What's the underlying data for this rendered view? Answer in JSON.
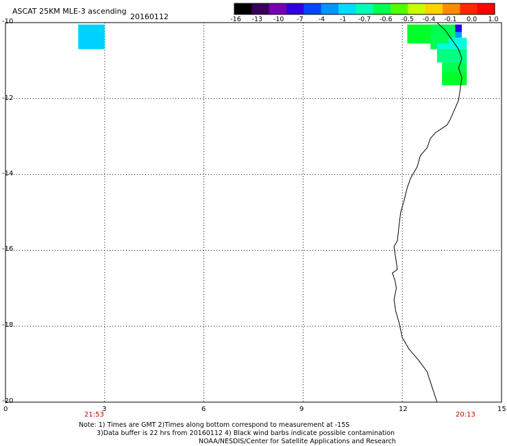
{
  "header": {
    "title": "ASCAT 25KM MLE-3 ascending",
    "date": "20160112"
  },
  "colorbar": {
    "labels": [
      "-16",
      "-13",
      "-10",
      "-7",
      "-4",
      "-1",
      "-0.7",
      "-0.6",
      "-0.5",
      "-0.4",
      "-0.1",
      "0.0",
      "1.0"
    ],
    "colors": [
      "#000000",
      "#3a0058",
      "#7800b4",
      "#3000e0",
      "#0046ff",
      "#0096ff",
      "#00dcff",
      "#00ffb4",
      "#00ff50",
      "#50ff00",
      "#c8ff00",
      "#ffd200",
      "#ff8c00",
      "#ff2800",
      "#ff0000"
    ]
  },
  "axes": {
    "x_ticks": [
      "0",
      "3",
      "6",
      "9",
      "12",
      "15"
    ],
    "y_ticks": [
      "-10",
      "-12",
      "-14",
      "-16",
      "-18",
      "-20"
    ],
    "x_range": [
      0,
      15
    ],
    "y_range": [
      -20,
      -10
    ],
    "grid": true
  },
  "times": {
    "left": "21:53",
    "right": "20:13"
  },
  "footer": {
    "line1": "Note: 1) Times are GMT 2)Times along bottom correspond to measurement at -15S",
    "line2": "3)Data buffer is 22 hrs from 20160112 4) Black wind barbs indicate possible contamination",
    "line3": "NOAA/NESDIS/Center for Satellite Applications and Research"
  },
  "cells": [
    {
      "lon0": 2.2,
      "lon1": 3.0,
      "lat0": -10.05,
      "lat1": -10.7,
      "color": "#00d2ff"
    },
    {
      "lon0": 12.15,
      "lon1": 13.05,
      "lat0": -10.05,
      "lat1": -10.55,
      "color": "#00ff28"
    },
    {
      "lon0": 12.85,
      "lon1": 13.6,
      "lat0": -10.05,
      "lat1": -10.7,
      "color": "#00ff50"
    },
    {
      "lon0": 13.6,
      "lon1": 13.8,
      "lat0": -10.05,
      "lat1": -10.25,
      "color": "#2800e0"
    },
    {
      "lon0": 13.6,
      "lon1": 13.8,
      "lat0": -10.25,
      "lat1": -10.4,
      "color": "#00a0ff"
    },
    {
      "lon0": 13.05,
      "lon1": 13.4,
      "lat0": -10.55,
      "lat1": -10.7,
      "color": "#00ffdc"
    },
    {
      "lon0": 13.4,
      "lon1": 13.95,
      "lat0": -10.4,
      "lat1": -10.7,
      "color": "#00ffdc"
    },
    {
      "lon0": 13.05,
      "lon1": 13.95,
      "lat0": -10.7,
      "lat1": -11.05,
      "color": "#00ff82"
    },
    {
      "lon0": 13.2,
      "lon1": 13.95,
      "lat0": -11.05,
      "lat1": -11.3,
      "color": "#00ff50"
    },
    {
      "lon0": 13.2,
      "lon1": 13.95,
      "lat0": -11.3,
      "lat1": -11.65,
      "color": "#00ff28"
    }
  ],
  "coastline": [
    [
      13.05,
      -10.0
    ],
    [
      13.3,
      -10.2
    ],
    [
      13.5,
      -10.45
    ],
    [
      13.7,
      -10.7
    ],
    [
      13.8,
      -10.95
    ],
    [
      13.7,
      -11.2
    ],
    [
      13.8,
      -11.45
    ],
    [
      13.75,
      -11.75
    ],
    [
      13.7,
      -12.05
    ],
    [
      13.55,
      -12.35
    ],
    [
      13.45,
      -12.55
    ],
    [
      13.35,
      -12.7
    ],
    [
      13.0,
      -12.9
    ],
    [
      12.85,
      -13.05
    ],
    [
      12.75,
      -13.3
    ],
    [
      12.55,
      -13.5
    ],
    [
      12.45,
      -13.8
    ],
    [
      12.25,
      -14.1
    ],
    [
      12.15,
      -14.35
    ],
    [
      12.05,
      -14.7
    ],
    [
      11.95,
      -15.0
    ],
    [
      11.9,
      -15.35
    ],
    [
      11.85,
      -15.75
    ],
    [
      11.75,
      -15.9
    ],
    [
      11.8,
      -16.2
    ],
    [
      11.85,
      -16.5
    ],
    [
      11.7,
      -16.6
    ],
    [
      11.78,
      -16.8
    ],
    [
      11.82,
      -17.0
    ],
    [
      11.75,
      -17.3
    ],
    [
      11.8,
      -17.6
    ],
    [
      11.9,
      -17.9
    ],
    [
      12.0,
      -18.3
    ],
    [
      12.2,
      -18.6
    ],
    [
      12.5,
      -18.9
    ],
    [
      12.75,
      -19.2
    ],
    [
      12.9,
      -19.6
    ],
    [
      13.05,
      -20.0
    ]
  ]
}
